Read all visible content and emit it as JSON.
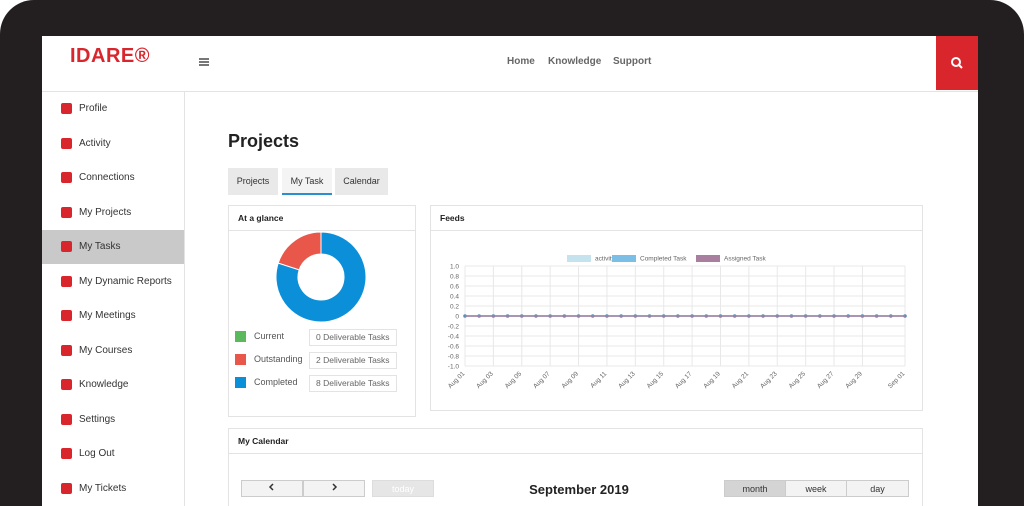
{
  "header": {
    "logo": "IDARE®",
    "nav": [
      "Home",
      "Knowledge",
      "Support"
    ]
  },
  "sidebar": {
    "items": [
      "Profile",
      "Activity",
      "Connections",
      "My Projects",
      "My Tasks",
      "My Dynamic Reports",
      "My Meetings",
      "My Courses",
      "Knowledge",
      "Settings",
      "Log Out",
      "My Tickets"
    ]
  },
  "page": {
    "title": "Projects",
    "tabs": [
      "Projects",
      "My Task",
      "Calendar"
    ]
  },
  "chart_data": [
    {
      "type": "pie",
      "title": "At a glance",
      "categories": [
        "Current",
        "Outstanding",
        "Completed"
      ],
      "values": [
        0,
        2,
        8
      ],
      "value_labels": [
        "0 Deliverable Tasks",
        "2 Deliverable Tasks",
        "8 Deliverable Tasks"
      ],
      "colors": [
        "#5cb85c",
        "#e8574a",
        "#0b8fd9"
      ]
    },
    {
      "type": "line",
      "title": "Feeds",
      "categories": [
        "Aug 01",
        null,
        "Aug 03",
        null,
        "Aug 05",
        null,
        "Aug 07",
        null,
        "Aug 09",
        null,
        "Aug 11",
        null,
        "Aug 13",
        null,
        "Aug 15",
        null,
        "Aug 17",
        null,
        "Aug 19",
        null,
        "Aug 21",
        null,
        "Aug 23",
        null,
        "Aug 25",
        null,
        "Aug 27",
        null,
        "Aug 29",
        null,
        null,
        "Sep 01"
      ],
      "series": [
        {
          "name": "activity",
          "color": "#c5e3ef",
          "values": [
            0,
            0,
            0,
            0,
            0,
            0,
            0,
            0,
            0,
            0,
            0,
            0,
            0,
            0,
            0,
            0,
            0,
            0,
            0,
            0,
            0,
            0,
            0,
            0,
            0,
            0,
            0,
            0,
            0,
            0,
            0,
            0
          ]
        },
        {
          "name": "Completed Task",
          "color": "#7cbfe6",
          "values": [
            0,
            0,
            0,
            0,
            0,
            0,
            0,
            0,
            0,
            0,
            0,
            0,
            0,
            0,
            0,
            0,
            0,
            0,
            0,
            0,
            0,
            0,
            0,
            0,
            0,
            0,
            0,
            0,
            0,
            0,
            0,
            0
          ]
        },
        {
          "name": "Assigned Task",
          "color": "#a97f9f",
          "values": [
            0,
            0,
            0,
            0,
            0,
            0,
            0,
            0,
            0,
            0,
            0,
            0,
            0,
            0,
            0,
            0,
            0,
            0,
            0,
            0,
            0,
            0,
            0,
            0,
            0,
            0,
            0,
            0,
            0,
            0,
            0,
            0
          ]
        }
      ],
      "ylim": [
        -1,
        1
      ],
      "yticks": [
        {
          "value": 1,
          "label": "1.0"
        },
        0.8,
        0.6,
        0.4,
        0.2,
        0,
        -0.2,
        -0.4,
        -0.6,
        -0.8,
        {
          "value": -1,
          "label": "-1.0"
        }
      ],
      "grid": true
    }
  ],
  "calendar": {
    "title": "My Calendar",
    "today": "today",
    "month_title": "September 2019",
    "views": [
      "month",
      "week",
      "day"
    ]
  }
}
